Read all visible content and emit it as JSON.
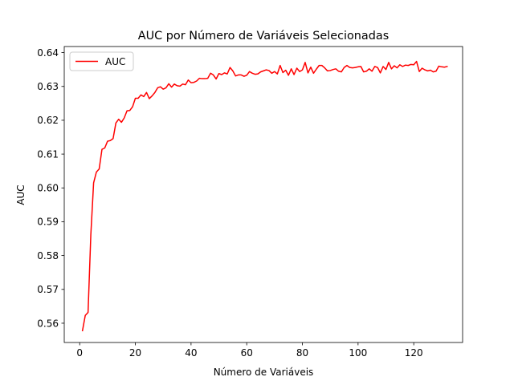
{
  "chart_data": {
    "type": "line",
    "title": "AUC por Número de Variáveis Selecionadas",
    "xlabel": "Número de Variáveis",
    "ylabel": "AUC",
    "xlim": [
      -5.55,
      137.55
    ],
    "ylim": [
      0.5543,
      0.6418
    ],
    "xticks": [
      0,
      20,
      40,
      60,
      80,
      100,
      120
    ],
    "yticks": [
      0.56,
      0.57,
      0.58,
      0.59,
      0.6,
      0.61,
      0.62,
      0.63,
      0.64
    ],
    "ytick_labels": [
      "0.56",
      "0.57",
      "0.58",
      "0.59",
      "0.60",
      "0.61",
      "0.62",
      "0.63",
      "0.64"
    ],
    "grid": false,
    "legend_position": "top-left",
    "series": [
      {
        "name": "AUC",
        "color": "#ff0000",
        "x": [
          1,
          2,
          3,
          4,
          5,
          6,
          7,
          8,
          9,
          10,
          11,
          12,
          13,
          14,
          15,
          16,
          17,
          18,
          19,
          20,
          21,
          22,
          23,
          24,
          25,
          26,
          27,
          28,
          29,
          30,
          31,
          32,
          33,
          34,
          35,
          36,
          37,
          38,
          39,
          40,
          41,
          42,
          43,
          44,
          45,
          46,
          47,
          48,
          49,
          50,
          51,
          52,
          53,
          54,
          55,
          56,
          57,
          58,
          59,
          60,
          61,
          62,
          63,
          64,
          65,
          66,
          67,
          68,
          69,
          70,
          71,
          72,
          73,
          74,
          75,
          76,
          77,
          78,
          79,
          80,
          81,
          82,
          83,
          84,
          85,
          86,
          87,
          88,
          89,
          90,
          91,
          92,
          93,
          94,
          95,
          96,
          97,
          98,
          99,
          100,
          101,
          102,
          103,
          104,
          105,
          106,
          107,
          108,
          109,
          110,
          111,
          112,
          113,
          114,
          115,
          116,
          117,
          118,
          119,
          120,
          121,
          122,
          123,
          124,
          125,
          126,
          127,
          128,
          129,
          130,
          131,
          132
        ],
        "values": [
          0.5578,
          0.5623,
          0.5632,
          0.5862,
          0.6015,
          0.6047,
          0.6056,
          0.6114,
          0.6118,
          0.6138,
          0.614,
          0.6146,
          0.6192,
          0.6203,
          0.6194,
          0.6207,
          0.6228,
          0.6229,
          0.624,
          0.6265,
          0.6265,
          0.6275,
          0.627,
          0.6282,
          0.6264,
          0.6272,
          0.6282,
          0.6296,
          0.6299,
          0.6292,
          0.6296,
          0.6308,
          0.6298,
          0.6307,
          0.6302,
          0.6301,
          0.6307,
          0.6305,
          0.6319,
          0.6311,
          0.6312,
          0.6316,
          0.6324,
          0.6323,
          0.6323,
          0.6324,
          0.6339,
          0.6334,
          0.6322,
          0.6338,
          0.6335,
          0.634,
          0.6337,
          0.6356,
          0.6346,
          0.6331,
          0.6334,
          0.6334,
          0.633,
          0.6333,
          0.6344,
          0.6339,
          0.6336,
          0.6337,
          0.6343,
          0.6346,
          0.6349,
          0.6347,
          0.6339,
          0.6344,
          0.6337,
          0.6362,
          0.6341,
          0.6348,
          0.6333,
          0.6352,
          0.6335,
          0.6354,
          0.6344,
          0.6349,
          0.6371,
          0.634,
          0.6357,
          0.6339,
          0.6351,
          0.6362,
          0.6362,
          0.6355,
          0.6346,
          0.6347,
          0.635,
          0.6352,
          0.6345,
          0.6343,
          0.6356,
          0.6362,
          0.6356,
          0.6355,
          0.6356,
          0.6358,
          0.6359,
          0.6343,
          0.6345,
          0.6352,
          0.6345,
          0.6359,
          0.6356,
          0.634,
          0.6359,
          0.635,
          0.6371,
          0.6352,
          0.6361,
          0.6355,
          0.6364,
          0.6359,
          0.6363,
          0.6362,
          0.6365,
          0.6364,
          0.6374,
          0.6344,
          0.6354,
          0.6349,
          0.6346,
          0.6348,
          0.6343,
          0.6345,
          0.636,
          0.6358,
          0.6357,
          0.6359
        ]
      }
    ]
  }
}
